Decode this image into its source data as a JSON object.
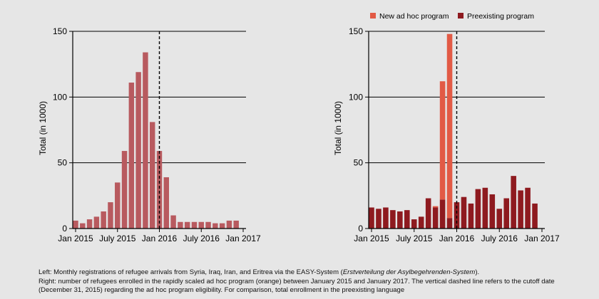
{
  "figure": {
    "cutoff_x": 12,
    "colors": {
      "background": "#e6e6e6",
      "left_bars": "#b85a5f",
      "new_ad_hoc": "#e25a45",
      "preexisting": "#8e1a1f",
      "axis": "#000000"
    }
  },
  "chart_data": [
    {
      "type": "bar",
      "title": "",
      "xlabel": "",
      "ylabel": "Total (in 1000)",
      "ylim": [
        0,
        150
      ],
      "yticks": [
        "0",
        "50",
        "100",
        "150"
      ],
      "xticks": [
        "Jan 2015",
        "July 2015",
        "Jan 2016",
        "July 2016",
        "Jan 2017"
      ],
      "xtick_positions": [
        0,
        6,
        12,
        18,
        24
      ],
      "grid": "horizontal",
      "legend": "none",
      "categories": [
        "Jan 2015",
        "Feb 2015",
        "Mar 2015",
        "Apr 2015",
        "May 2015",
        "Jun 2015",
        "Jul 2015",
        "Aug 2015",
        "Sep 2015",
        "Oct 2015",
        "Nov 2015",
        "Dec 2015",
        "Jan 2016",
        "Feb 2016",
        "Mar 2016",
        "Apr 2016",
        "May 2016",
        "Jun 2016",
        "Jul 2016",
        "Aug 2016",
        "Sep 2016",
        "Oct 2016",
        "Nov 2016",
        "Dec 2016",
        "Jan 2017"
      ],
      "series": [
        {
          "values": [
            6,
            4,
            7,
            9,
            13,
            20,
            35,
            59,
            111,
            119,
            134,
            81,
            59,
            39,
            10,
            5,
            5,
            5,
            5,
            5,
            4,
            4,
            6,
            6,
            0
          ]
        }
      ]
    },
    {
      "type": "bar",
      "stacked": true,
      "title": "",
      "xlabel": "",
      "ylabel": "Total (in 1000)",
      "ylim": [
        0,
        150
      ],
      "yticks": [
        "0",
        "50",
        "100",
        "150"
      ],
      "xticks": [
        "Jan 2015",
        "July 2015",
        "Jan 2016",
        "July 2016",
        "Jan 2017"
      ],
      "xtick_positions": [
        0,
        6,
        12,
        18,
        24
      ],
      "grid": "horizontal",
      "legend": "top-right",
      "categories": [
        "Jan 2015",
        "Feb 2015",
        "Mar 2015",
        "Apr 2015",
        "May 2015",
        "Jun 2015",
        "Jul 2015",
        "Aug 2015",
        "Sep 2015",
        "Oct 2015",
        "Nov 2015",
        "Dec 2015",
        "Jan 2016",
        "Feb 2016",
        "Mar 2016",
        "Apr 2016",
        "May 2016",
        "Jun 2016",
        "Jul 2016",
        "Aug 2016",
        "Sep 2016",
        "Oct 2016",
        "Nov 2016",
        "Dec 2016",
        "Jan 2017"
      ],
      "series": [
        {
          "name": "Preexisting program",
          "values": [
            16,
            15,
            16,
            14,
            13,
            14,
            7,
            9,
            23,
            16,
            22,
            8,
            20,
            24,
            19,
            30,
            31,
            26,
            15,
            23,
            40,
            29,
            31,
            19,
            0
          ]
        },
        {
          "name": "New ad hoc program",
          "values": [
            0,
            0,
            0,
            0,
            0,
            0,
            0,
            0,
            0,
            1,
            90,
            140,
            0,
            0,
            0,
            0,
            0,
            0,
            0,
            0,
            0,
            0,
            0,
            0,
            0
          ]
        }
      ]
    }
  ],
  "caption": {
    "line1_prefix": "Left: Monthly registrations of refugee arrivals from Syria, Iraq, Iran, and Eritrea via the EASY-System (",
    "line1_italic": "Erstverteilung der Asylbegehrenden-System",
    "line1_suffix": ").",
    "rest": "Right: number of refugees enrolled in the rapidly scaled ad hoc program (orange) between January 2015 and January 2017. The vertical dashed line refers to the cutoff date (December 31, 2015) regarding the ad hoc program eligibility. For comparison, total enrollment in the preexisting language"
  }
}
